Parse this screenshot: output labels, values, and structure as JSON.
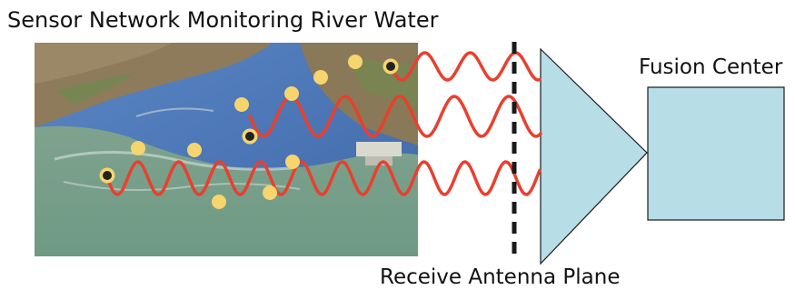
{
  "title": "Sensor Network Monitoring River Water",
  "fusion_center_label": "Fusion Center",
  "antenna_plane_label": "Receive Antenna Plane",
  "colors": {
    "wave": "#e8402f",
    "sensor_passive": "#f6d56e",
    "sensor_active_ring": "#f6d56e",
    "sensor_active_core": "#222222",
    "receiver_fill": "#b7dde7",
    "antenna_line": "#1a1a1a",
    "water": "#4f79b8",
    "land": "#8c7a5a"
  },
  "photo": {
    "description_icon": "river-aerial-photo"
  }
}
